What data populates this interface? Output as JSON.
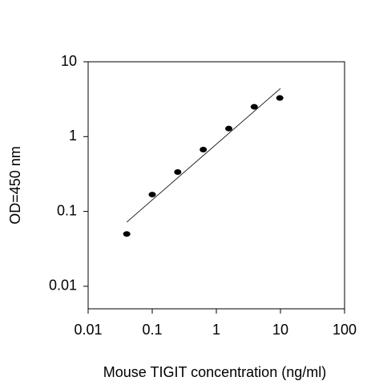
{
  "chart_data": {
    "type": "scatter",
    "x_label": "Mouse TIGIT concentration (ng/ml)",
    "y_label": "OD=450 nm",
    "x": [
      0.04,
      0.1,
      0.25,
      0.625,
      1.5625,
      3.9,
      9.77
    ],
    "values": [
      0.05,
      0.168,
      0.336,
      0.67,
      1.28,
      2.5,
      3.28
    ],
    "color": "#000000",
    "trendline": {
      "x": [
        0.04,
        10
      ],
      "values": [
        0.072,
        4.4
      ]
    },
    "xlim": [
      0.01,
      100
    ],
    "ylim": [
      0.005,
      10
    ],
    "xticks": [
      0.01,
      0.1,
      1,
      10,
      100
    ],
    "yticks": [
      0.01,
      0.1,
      1,
      10
    ],
    "log_x": true,
    "log_y": true,
    "grid": false
  }
}
